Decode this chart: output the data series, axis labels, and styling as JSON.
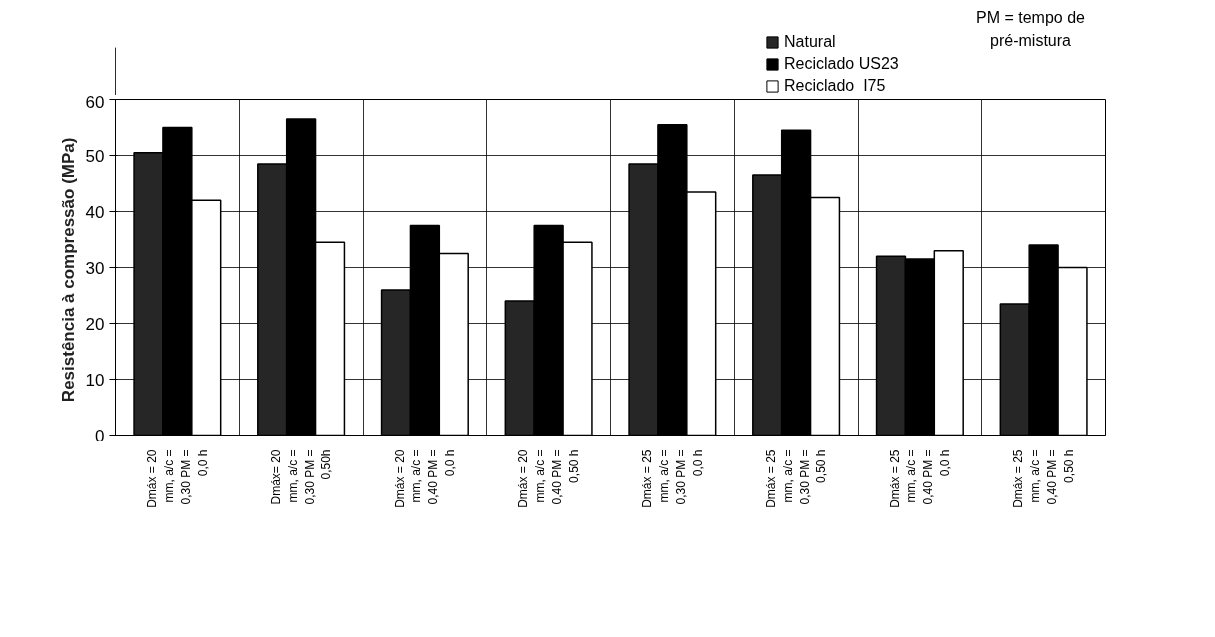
{
  "chart_data": {
    "type": "bar",
    "ylabel": "Resistência à compressão  (MPa)",
    "categories": [
      "Dmáx = 20\nmm, a/c =\n0,30 PM =\n0,0 h",
      "Dmáx= 20\nmm, a/c =\n0,30 PM =\n0,50h",
      "Dmáx = 20\nmm, a/c =\n0,40 PM =\n0,0 h",
      "Dmáx = 20\nmm, a/c =\n0,40 PM =\n0,50 h",
      "Dmáx = 25\nmm, a/c =\n0,30 PM =\n0,0 h",
      "Dmáx = 25\nmm, a/c =\n0,30 PM =\n0,50 h",
      "Dmáx = 25\nmm, a/c =\n0,40 PM =\n0,0 h",
      "Dmáx = 25\nmm, a/c =\n0,40 PM =\n0,50 h"
    ],
    "series": [
      {
        "name": "Natural",
        "color": "#262626",
        "values": [
          50.5,
          48.5,
          26,
          24,
          48.5,
          46.5,
          32,
          23.5
        ]
      },
      {
        "name": "Reciclado US23",
        "color": "#000000",
        "values": [
          55,
          56.5,
          37.5,
          37.5,
          55.5,
          54.5,
          31.5,
          34
        ]
      },
      {
        "name": "Reciclado  I75",
        "color": "#ffffff",
        "values": [
          42,
          34.5,
          32.5,
          34.5,
          43.5,
          42.5,
          33,
          30
        ]
      }
    ],
    "ylim": [
      0,
      60
    ],
    "yticks": [
      0,
      10,
      20,
      30,
      40,
      50,
      60
    ],
    "grid": true,
    "legend": "top right",
    "annotations": [
      "PM = tempo de\npré-mistura"
    ]
  }
}
